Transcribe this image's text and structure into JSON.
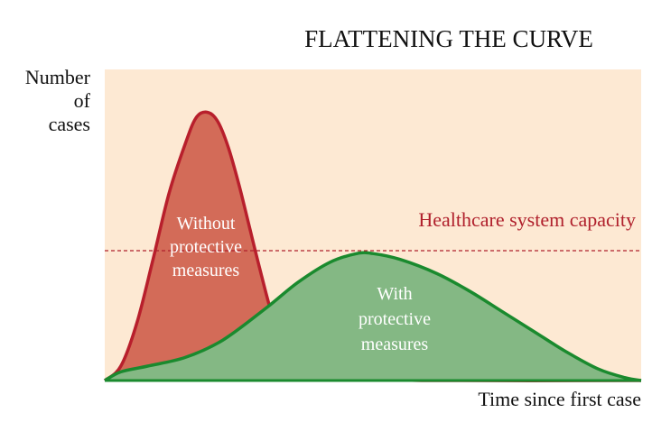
{
  "chart_data": {
    "type": "area",
    "title": "FLATTENING THE CURVE",
    "ylabel_lines": [
      "Number",
      "of",
      "cases"
    ],
    "xlabel": "Time since first case",
    "xlim": [
      0,
      100
    ],
    "ylim": [
      0,
      100
    ],
    "grid": false,
    "capacity": {
      "label": "Healthcare system capacity",
      "value": 45,
      "color": "#b0202c",
      "style": "dashed"
    },
    "series": [
      {
        "label_lines": [
          "Without",
          "protective",
          "measures"
        ],
        "fill": "#d36b58",
        "stroke": "#b81f2c",
        "points": [
          [
            0,
            0
          ],
          [
            3,
            5
          ],
          [
            6,
            20
          ],
          [
            9,
            42
          ],
          [
            12,
            65
          ],
          [
            15,
            82
          ],
          [
            17,
            91
          ],
          [
            19,
            93
          ],
          [
            21,
            90
          ],
          [
            23,
            81
          ],
          [
            25,
            68
          ],
          [
            27,
            53
          ],
          [
            29,
            38
          ],
          [
            31,
            24
          ],
          [
            33,
            14
          ],
          [
            36,
            7
          ],
          [
            40,
            4
          ],
          [
            45,
            2
          ],
          [
            50,
            1
          ],
          [
            60,
            0
          ],
          [
            100,
            0
          ]
        ]
      },
      {
        "label_lines": [
          "With",
          "protective",
          "measures"
        ],
        "fill": "#84b884",
        "stroke": "#1a8a2e",
        "points": [
          [
            0,
            0
          ],
          [
            3,
            3
          ],
          [
            8,
            5
          ],
          [
            15,
            8
          ],
          [
            22,
            14
          ],
          [
            30,
            25
          ],
          [
            36,
            34
          ],
          [
            42,
            41
          ],
          [
            47,
            44
          ],
          [
            50,
            44
          ],
          [
            55,
            42
          ],
          [
            62,
            37
          ],
          [
            68,
            31
          ],
          [
            74,
            24
          ],
          [
            80,
            17
          ],
          [
            86,
            10
          ],
          [
            92,
            4
          ],
          [
            97,
            1
          ],
          [
            100,
            0
          ]
        ]
      }
    ]
  },
  "colors": {
    "plot_background": "#fde9d3",
    "axis": "#1a8a2e"
  }
}
